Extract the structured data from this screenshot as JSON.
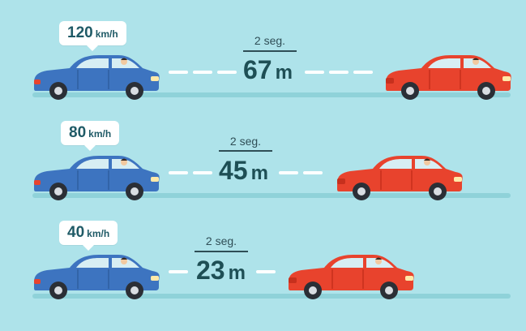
{
  "colors": {
    "background": "#aee3ea",
    "blue_car": "#3d74c0",
    "red_car": "#e8432d",
    "text_dark": "#1e4f55"
  },
  "rows": [
    {
      "speed": "120",
      "speed_unit": "km/h",
      "time": "2 seg.",
      "distance": "67",
      "distance_unit": "m"
    },
    {
      "speed": "80",
      "speed_unit": "km/h",
      "time": "2 seg.",
      "distance": "45",
      "distance_unit": "m"
    },
    {
      "speed": "40",
      "speed_unit": "km/h",
      "time": "2 seg.",
      "distance": "23",
      "distance_unit": "m"
    }
  ]
}
